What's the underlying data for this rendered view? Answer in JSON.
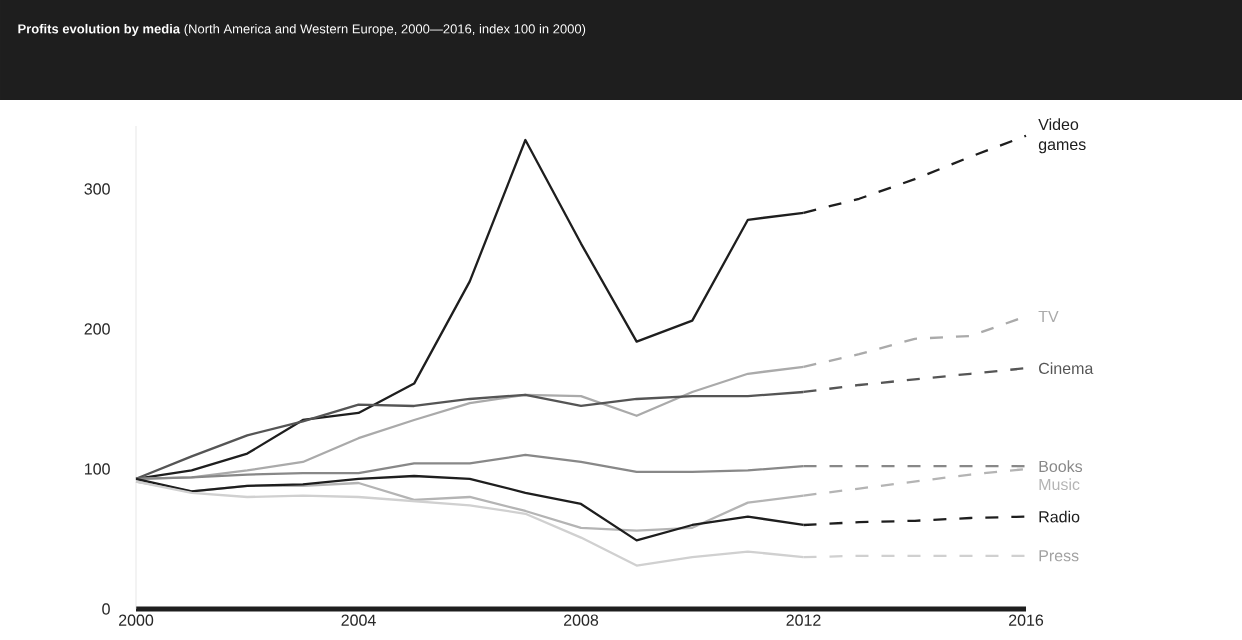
{
  "chart_data": {
    "type": "line",
    "title": "**Profits evolution by media** (North America and Western Europe, 2000—2016, index 100 in 2000)",
    "xlim": [
      2000,
      2016
    ],
    "xticks": [
      2000,
      2004,
      2008,
      2012,
      2016
    ],
    "ylim": [
      0,
      345
    ],
    "yticks": [
      0,
      100,
      200,
      300
    ],
    "series": [
      {
        "color": "#1e1e1e",
        "line_style": "solid",
        "x": [
          2000,
          2001,
          2002,
          2003,
          2004,
          2005,
          2006,
          2007,
          2008,
          2009,
          2010,
          2011,
          2012
        ],
        "values": [
          93,
          99,
          111,
          135,
          140,
          161,
          234,
          335,
          261,
          191,
          206,
          278,
          283
        ]
      },
      {
        "name": "Video games",
        "color": "#1e1e1e",
        "line_style": "dashed",
        "x": [
          2012,
          2013,
          2014,
          2015,
          2016
        ],
        "values": [
          283,
          293,
          307,
          323,
          338
        ]
      },
      {
        "color": "#aaaaaa",
        "line_style": "solid",
        "x": [
          2000,
          2001,
          2002,
          2003,
          2004,
          2005,
          2006,
          2007,
          2008,
          2009,
          2010,
          2011,
          2012
        ],
        "values": [
          93,
          94,
          99,
          105,
          122,
          135,
          147,
          153,
          152,
          138,
          155,
          168,
          173
        ]
      },
      {
        "name": "TV",
        "color": "#aaaaaa",
        "line_style": "dashed",
        "x": [
          2012,
          2013,
          2014,
          2015,
          2016
        ],
        "values": [
          173,
          182,
          193,
          195,
          209
        ]
      },
      {
        "color": "#555555",
        "line_style": "solid",
        "x": [
          2000,
          2001,
          2002,
          2003,
          2004,
          2005,
          2006,
          2007,
          2008,
          2009,
          2010,
          2011,
          2012
        ],
        "values": [
          93,
          109,
          124,
          134,
          146,
          145,
          150,
          153,
          145,
          150,
          152,
          152,
          155
        ]
      },
      {
        "name": "Cinema",
        "color": "#555555",
        "line_style": "dashed",
        "x": [
          2012,
          2013,
          2014,
          2015,
          2016
        ],
        "values": [
          155,
          160,
          164,
          168,
          172
        ]
      },
      {
        "color": "#888888",
        "line_style": "solid",
        "x": [
          2000,
          2001,
          2002,
          2003,
          2004,
          2005,
          2006,
          2007,
          2008,
          2009,
          2010,
          2011,
          2012
        ],
        "values": [
          93,
          94,
          96,
          97,
          97,
          104,
          104,
          110,
          105,
          98,
          98,
          99,
          102
        ]
      },
      {
        "name": "Books",
        "color": "#888888",
        "line_style": "dashed",
        "x": [
          2012,
          2013,
          2014,
          2015,
          2016
        ],
        "values": [
          102,
          102,
          102,
          102,
          102
        ]
      },
      {
        "color": "#b4b4b4",
        "line_style": "solid",
        "x": [
          2000,
          2001,
          2002,
          2003,
          2004,
          2005,
          2006,
          2007,
          2008,
          2009,
          2010,
          2011,
          2012
        ],
        "values": [
          91,
          84,
          88,
          88,
          90,
          78,
          80,
          70,
          58,
          56,
          58,
          76,
          81
        ]
      },
      {
        "name": "Music",
        "color": "#b4b4b4",
        "line_style": "dashed",
        "x": [
          2012,
          2013,
          2014,
          2015,
          2016
        ],
        "values": [
          81,
          86,
          91,
          96,
          100
        ]
      },
      {
        "color": "#1e1e1e",
        "line_style": "solid",
        "x": [
          2000,
          2001,
          2002,
          2003,
          2004,
          2005,
          2006,
          2007,
          2008,
          2009,
          2010,
          2011,
          2012
        ],
        "values": [
          93,
          84,
          88,
          89,
          93,
          95,
          93,
          83,
          75,
          49,
          60,
          66,
          60
        ]
      },
      {
        "name": "Radio",
        "color": "#1e1e1e",
        "line_style": "dashed",
        "x": [
          2012,
          2013,
          2014,
          2015,
          2016
        ],
        "values": [
          60,
          62,
          63,
          65,
          66
        ]
      },
      {
        "color": "#d0d0d0",
        "line_style": "solid",
        "x": [
          2000,
          2001,
          2002,
          2003,
          2004,
          2005,
          2006,
          2007,
          2008,
          2009,
          2010,
          2011,
          2012
        ],
        "values": [
          91,
          83,
          80,
          81,
          80,
          77,
          74,
          68,
          51,
          31,
          37,
          41,
          37
        ]
      },
      {
        "name": "Press",
        "color": "#d0d0d0",
        "line_style": "dashed",
        "x": [
          2012,
          2013,
          2014,
          2015,
          2016
        ],
        "values": [
          37,
          38,
          38,
          38,
          38
        ]
      }
    ]
  }
}
